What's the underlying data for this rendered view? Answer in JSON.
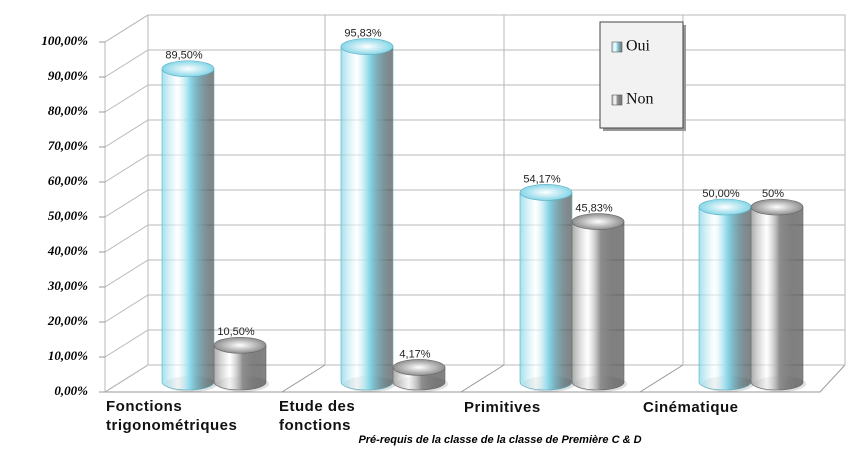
{
  "chart_data": {
    "type": "cylinder-bar",
    "xlabel": "Pré-requis de la classe de  la classe de Première C & D",
    "categories": [
      "Fonctions trigonométriques",
      "Etude des fonctions",
      "Primitives",
      "Cinématique"
    ],
    "series": [
      {
        "name": "Oui",
        "color": "#86d6e8",
        "values": [
          89.5,
          95.83,
          54.17,
          50.0
        ],
        "value_labels": [
          "89,50%",
          "95,83%",
          "54,17%",
          "50,00%"
        ]
      },
      {
        "name": "Non",
        "color": "#8e8e8e",
        "values": [
          10.5,
          4.17,
          45.83,
          50
        ],
        "value_labels": [
          "10,50%",
          "4,17%",
          "45,83%",
          "50%"
        ]
      }
    ],
    "ylim": [
      0,
      100
    ],
    "yticks": [
      {
        "value": 0,
        "label": "0,00%"
      },
      {
        "value": 10,
        "label": "10,00%"
      },
      {
        "value": 20,
        "label": "20,00%"
      },
      {
        "value": 30,
        "label": "30,00%"
      },
      {
        "value": 40,
        "label": "40,00%"
      },
      {
        "value": 50,
        "label": "50,00%"
      },
      {
        "value": 60,
        "label": "60,00%"
      },
      {
        "value": 70,
        "label": "70,00%"
      },
      {
        "value": 80,
        "label": "80,00%"
      },
      {
        "value": 90,
        "label": "90,00%"
      },
      {
        "value": 100,
        "label": "100,00%"
      }
    ],
    "grid": true
  }
}
